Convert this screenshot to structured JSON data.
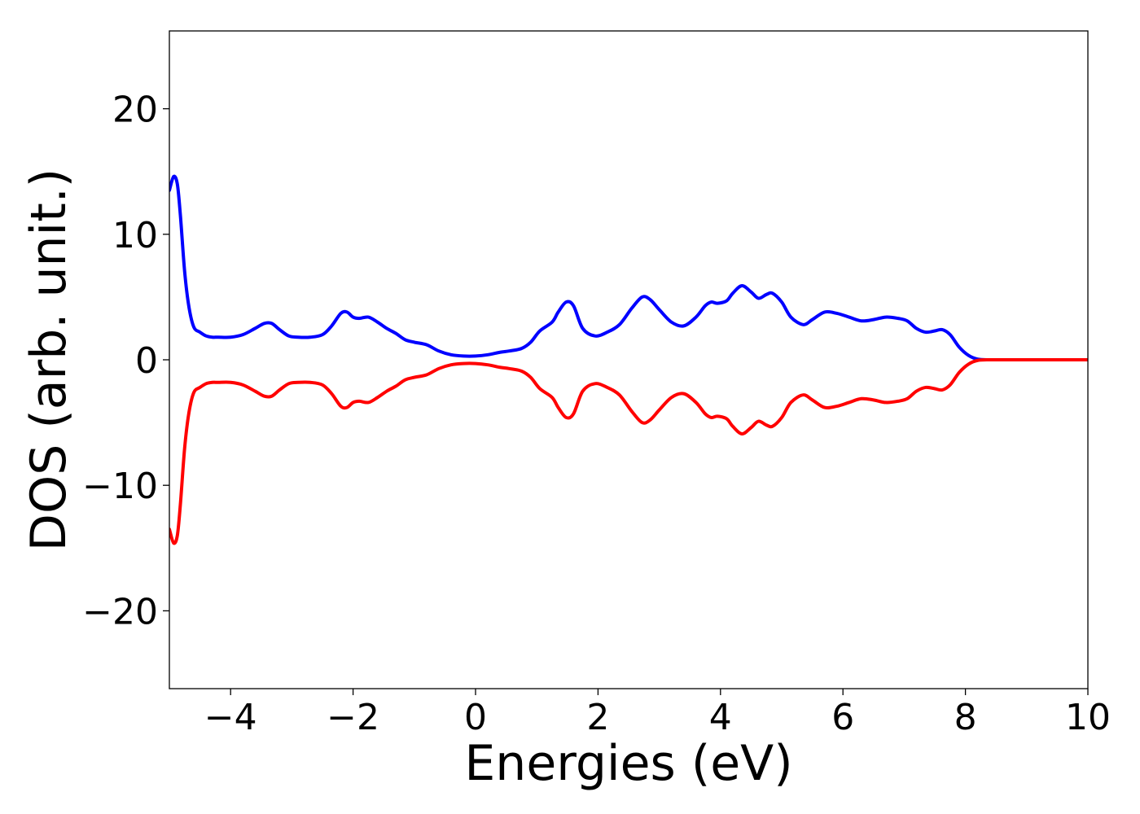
{
  "chart_data": {
    "type": "line",
    "title": "",
    "xlabel": "Energies (eV)",
    "ylabel": "DOS (arb. unit.)",
    "xlim": [
      -5,
      10
    ],
    "ylim": [
      -26.2,
      26.2
    ],
    "grid": false,
    "legend": "none",
    "x_ticks": [
      -4,
      -2,
      0,
      2,
      4,
      6,
      8,
      10
    ],
    "x_tick_labels": [
      "−4",
      "−2",
      "0",
      "2",
      "4",
      "6",
      "8",
      "10"
    ],
    "y_ticks": [
      20,
      10,
      0,
      -10,
      -20
    ],
    "y_tick_labels": [
      "20",
      "10",
      "0",
      "−10",
      "−20"
    ],
    "series": [
      {
        "color": "#0000ff",
        "x": [
          -5.0,
          -4.93,
          -4.87,
          -4.82,
          -4.75,
          -4.68,
          -4.6,
          -4.5,
          -4.4,
          -4.3,
          -4.2,
          -4.0,
          -3.8,
          -3.6,
          -3.45,
          -3.33,
          -3.2,
          -3.05,
          -2.9,
          -2.7,
          -2.5,
          -2.35,
          -2.2,
          -2.1,
          -2.0,
          -1.9,
          -1.75,
          -1.6,
          -1.45,
          -1.3,
          -1.15,
          -1.0,
          -0.8,
          -0.6,
          -0.4,
          -0.2,
          0.0,
          0.2,
          0.4,
          0.55,
          0.75,
          0.9,
          1.05,
          1.25,
          1.35,
          1.48,
          1.6,
          1.75,
          1.95,
          2.15,
          2.35,
          2.55,
          2.72,
          2.85,
          3.0,
          3.2,
          3.4,
          3.6,
          3.75,
          3.85,
          3.95,
          4.1,
          4.2,
          4.35,
          4.5,
          4.62,
          4.75,
          4.85,
          5.0,
          5.15,
          5.35,
          5.5,
          5.7,
          5.9,
          6.1,
          6.3,
          6.5,
          6.7,
          6.9,
          7.05,
          7.2,
          7.35,
          7.5,
          7.62,
          7.75,
          7.9,
          8.05,
          8.2,
          8.4,
          8.6,
          9.0,
          9.5,
          10.0
        ],
        "values": [
          13.5,
          14.6,
          14.0,
          11.5,
          7.0,
          4.2,
          2.6,
          2.2,
          1.9,
          1.8,
          1.8,
          1.8,
          2.0,
          2.5,
          2.9,
          2.9,
          2.4,
          1.9,
          1.8,
          1.8,
          2.0,
          2.7,
          3.7,
          3.8,
          3.4,
          3.3,
          3.4,
          3.0,
          2.5,
          2.1,
          1.6,
          1.4,
          1.2,
          0.7,
          0.4,
          0.3,
          0.3,
          0.4,
          0.6,
          0.7,
          0.9,
          1.4,
          2.3,
          3.0,
          3.8,
          4.6,
          4.3,
          2.5,
          1.9,
          2.2,
          2.8,
          4.1,
          5.0,
          4.8,
          4.0,
          3.0,
          2.7,
          3.4,
          4.3,
          4.6,
          4.5,
          4.7,
          5.3,
          5.9,
          5.4,
          4.9,
          5.2,
          5.3,
          4.6,
          3.4,
          2.8,
          3.2,
          3.8,
          3.7,
          3.4,
          3.1,
          3.2,
          3.4,
          3.3,
          3.1,
          2.5,
          2.2,
          2.3,
          2.4,
          2.0,
          1.0,
          0.35,
          0.05,
          0.0,
          0.0,
          0.0,
          0.0,
          0.0
        ]
      },
      {
        "color": "#ff0000",
        "x": [
          -5.0,
          -4.93,
          -4.87,
          -4.82,
          -4.75,
          -4.68,
          -4.6,
          -4.5,
          -4.4,
          -4.3,
          -4.2,
          -4.0,
          -3.8,
          -3.6,
          -3.45,
          -3.33,
          -3.2,
          -3.05,
          -2.9,
          -2.7,
          -2.5,
          -2.35,
          -2.2,
          -2.1,
          -2.0,
          -1.9,
          -1.75,
          -1.6,
          -1.45,
          -1.3,
          -1.15,
          -1.0,
          -0.8,
          -0.6,
          -0.4,
          -0.2,
          0.0,
          0.2,
          0.4,
          0.55,
          0.75,
          0.9,
          1.05,
          1.25,
          1.35,
          1.48,
          1.6,
          1.75,
          1.95,
          2.15,
          2.35,
          2.55,
          2.72,
          2.85,
          3.0,
          3.2,
          3.4,
          3.6,
          3.75,
          3.85,
          3.95,
          4.1,
          4.2,
          4.35,
          4.5,
          4.62,
          4.75,
          4.85,
          5.0,
          5.15,
          5.35,
          5.5,
          5.7,
          5.9,
          6.1,
          6.3,
          6.5,
          6.7,
          6.9,
          7.05,
          7.2,
          7.35,
          7.5,
          7.62,
          7.75,
          7.9,
          8.05,
          8.2,
          8.4,
          8.6,
          9.0,
          9.5,
          10.0
        ],
        "values": [
          -13.5,
          -14.6,
          -14.0,
          -11.5,
          -7.0,
          -4.2,
          -2.6,
          -2.2,
          -1.9,
          -1.8,
          -1.8,
          -1.8,
          -2.0,
          -2.5,
          -2.9,
          -2.9,
          -2.4,
          -1.9,
          -1.8,
          -1.8,
          -2.0,
          -2.7,
          -3.7,
          -3.8,
          -3.4,
          -3.3,
          -3.4,
          -3.0,
          -2.5,
          -2.1,
          -1.6,
          -1.4,
          -1.2,
          -0.7,
          -0.4,
          -0.3,
          -0.3,
          -0.4,
          -0.6,
          -0.7,
          -0.9,
          -1.4,
          -2.3,
          -3.0,
          -3.8,
          -4.6,
          -4.3,
          -2.5,
          -1.9,
          -2.2,
          -2.8,
          -4.1,
          -5.0,
          -4.8,
          -4.0,
          -3.0,
          -2.7,
          -3.4,
          -4.3,
          -4.6,
          -4.5,
          -4.7,
          -5.3,
          -5.9,
          -5.4,
          -4.9,
          -5.2,
          -5.3,
          -4.6,
          -3.4,
          -2.8,
          -3.2,
          -3.8,
          -3.7,
          -3.4,
          -3.1,
          -3.2,
          -3.4,
          -3.3,
          -3.1,
          -2.5,
          -2.2,
          -2.3,
          -2.4,
          -2.0,
          -1.0,
          -0.35,
          -0.05,
          0.0,
          0.0,
          0.0,
          0.0,
          0.0
        ]
      }
    ]
  }
}
